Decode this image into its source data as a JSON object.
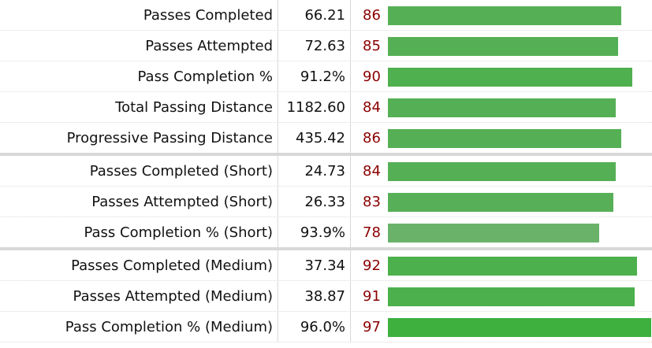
{
  "rows": [
    {
      "stat": "Passes Completed",
      "value": "66.21",
      "percentile": "86",
      "percentile_value": 86,
      "bar_color": "#55b055",
      "group_end": false
    },
    {
      "stat": "Passes Attempted",
      "value": "72.63",
      "percentile": "85",
      "percentile_value": 85,
      "bar_color": "#55b055",
      "group_end": false
    },
    {
      "stat": "Pass Completion %",
      "value": "91.2%",
      "percentile": "90",
      "percentile_value": 90,
      "bar_color": "#4fb04f",
      "group_end": false
    },
    {
      "stat": "Total Passing Distance",
      "value": "1182.60",
      "percentile": "84",
      "percentile_value": 84,
      "bar_color": "#55b055",
      "group_end": false
    },
    {
      "stat": "Progressive Passing Distance",
      "value": "435.42",
      "percentile": "86",
      "percentile_value": 86,
      "bar_color": "#55b055",
      "group_end": true
    },
    {
      "stat": "Passes Completed (Short)",
      "value": "24.73",
      "percentile": "84",
      "percentile_value": 84,
      "bar_color": "#55b055",
      "group_end": false
    },
    {
      "stat": "Passes Attempted (Short)",
      "value": "26.33",
      "percentile": "83",
      "percentile_value": 83,
      "bar_color": "#57b057",
      "group_end": false
    },
    {
      "stat": "Pass Completion % (Short)",
      "value": "93.9%",
      "percentile": "78",
      "percentile_value": 78,
      "bar_color": "#6ab26a",
      "group_end": true
    },
    {
      "stat": "Passes Completed (Medium)",
      "value": "37.34",
      "percentile": "92",
      "percentile_value": 92,
      "bar_color": "#4cb04c",
      "group_end": false
    },
    {
      "stat": "Passes Attempted (Medium)",
      "value": "38.87",
      "percentile": "91",
      "percentile_value": 91,
      "bar_color": "#4cb04c",
      "group_end": false
    },
    {
      "stat": "Pass Completion % (Medium)",
      "value": "96.0%",
      "percentile": "97",
      "percentile_value": 97,
      "bar_color": "#3db03d",
      "group_end": false
    }
  ]
}
